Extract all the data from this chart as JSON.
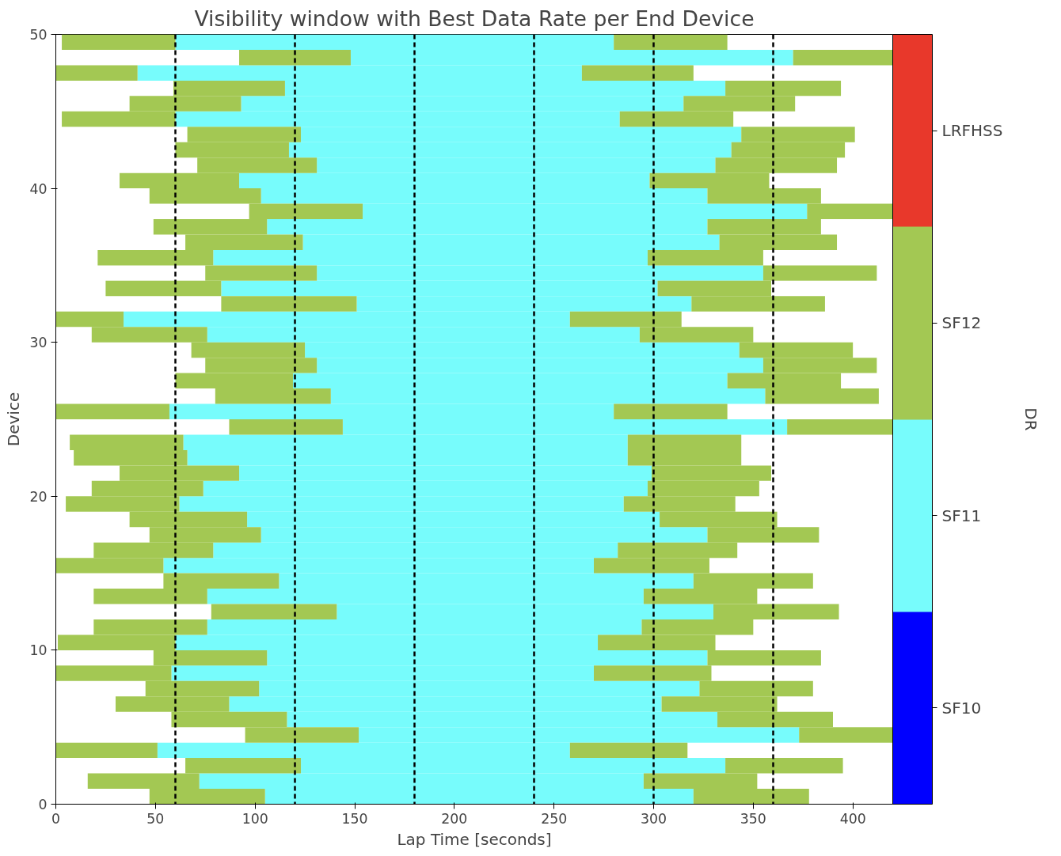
{
  "chart_data": {
    "type": "bar",
    "orientation": "horizontal",
    "title": "Visibility window with Best Data Rate per End Device",
    "xlabel": "Lap Time [seconds]",
    "ylabel": "Device",
    "clabel": "DR",
    "x": [
      0.5,
      1.5,
      2.5,
      3.5,
      4.5,
      5.5,
      6.5,
      7.5,
      8.5,
      9.5,
      10.5,
      11.5,
      12.5,
      13.5,
      14.5,
      15.5,
      16.5,
      17.5,
      18.5,
      19.5,
      20.5,
      21.5,
      22.5,
      23.5,
      24.5,
      25.5,
      26.5,
      27.5,
      28.5,
      29.5,
      30.5,
      31.5,
      32.5,
      33.5,
      34.5,
      35.5,
      36.5,
      37.5,
      38.5,
      39.5,
      40.5,
      41.5,
      42.5,
      43.5,
      44.5,
      45.5,
      46.5,
      47.5,
      48.5,
      49.5
    ],
    "xlim": [
      0,
      420
    ],
    "xticks": [
      0,
      50,
      100,
      150,
      200,
      250,
      300,
      350,
      400
    ],
    "ylim": [
      0,
      50
    ],
    "yticks": [
      0,
      10,
      20,
      30,
      40,
      50
    ],
    "grid": false,
    "series": [
      {
        "color": "#77fcfc",
        "base": [
          105,
          72,
          123,
          51,
          152,
          116,
          87,
          102,
          58,
          106,
          60,
          76,
          141,
          76,
          112,
          54,
          79,
          103,
          96,
          62,
          74,
          92,
          66,
          64,
          144,
          57,
          138,
          119,
          131,
          125,
          76,
          34,
          151,
          83,
          131,
          79,
          124,
          106,
          154,
          103,
          92,
          131,
          117,
          123,
          60,
          93,
          115,
          41,
          148,
          60
        ],
        "values": [
          215,
          223,
          213,
          207,
          221,
          216,
          217,
          221,
          212,
          221,
          212,
          218,
          189,
          219,
          208,
          216,
          203,
          224,
          207,
          223,
          223,
          207,
          221,
          223,
          223,
          223,
          218,
          218,
          224,
          218,
          217,
          224,
          168,
          219,
          224,
          218,
          209,
          221,
          223,
          224,
          206,
          200,
          222,
          221,
          223,
          222,
          221,
          223,
          222,
          220
        ]
      },
      {
        "color": "#a3c853",
        "base": [
          47,
          16,
          65,
          0,
          95,
          58,
          30,
          45,
          0,
          49,
          1,
          19,
          78,
          19,
          54,
          0,
          19,
          47,
          37,
          5,
          18,
          32,
          9,
          7,
          87,
          0,
          80,
          60,
          75,
          68,
          18,
          0,
          83,
          25,
          75,
          21,
          65,
          49,
          97,
          47,
          32,
          71,
          60,
          66,
          3,
          37,
          59,
          0,
          92,
          3
        ],
        "values": [
          58,
          56,
          58,
          51,
          57,
          58,
          57,
          57,
          58,
          57,
          59,
          57,
          63,
          57,
          58,
          54,
          60,
          56,
          59,
          57,
          56,
          60,
          57,
          57,
          57,
          57,
          58,
          59,
          56,
          57,
          58,
          34,
          68,
          58,
          56,
          58,
          59,
          57,
          57,
          56,
          60,
          60,
          57,
          57,
          57,
          56,
          56,
          41,
          56,
          57
        ]
      },
      {
        "color": "#a3c853",
        "base": [
          320,
          295,
          336,
          258,
          373,
          332,
          304,
          323,
          270,
          327,
          272,
          294,
          330,
          295,
          320,
          270,
          282,
          327,
          303,
          285,
          297,
          299,
          287,
          287,
          367,
          280,
          356,
          337,
          355,
          343,
          293,
          258,
          319,
          302,
          355,
          297,
          333,
          327,
          377,
          327,
          298,
          331,
          339,
          344,
          283,
          315,
          336,
          264,
          370,
          280
        ],
        "values": [
          58,
          57,
          59,
          59,
          47,
          58,
          58,
          57,
          59,
          57,
          59,
          56,
          63,
          57,
          60,
          58,
          60,
          56,
          59,
          56,
          56,
          60,
          57,
          57,
          53,
          57,
          57,
          57,
          57,
          57,
          57,
          56,
          67,
          57,
          57,
          58,
          59,
          57,
          43,
          57,
          60,
          61,
          57,
          57,
          57,
          56,
          58,
          56,
          50,
          57
        ]
      }
    ],
    "clim": [
      0,
      4
    ],
    "cticks": [
      {
        "value": 0.5,
        "label": "SF10"
      },
      {
        "value": 1.5,
        "label": "SF11"
      },
      {
        "value": 2.5,
        "label": "SF12"
      },
      {
        "value": 3.5,
        "label": "LRFHSS"
      }
    ],
    "colors": [
      "#0000ff",
      "#77fcfc",
      "#a3c853",
      "#e8382b"
    ],
    "ref_lines": [
      {
        "axis": "x",
        "value": 60,
        "color": "#000000",
        "line_style": "dashed"
      },
      {
        "axis": "x",
        "value": 120,
        "color": "#000000",
        "line_style": "dashed"
      },
      {
        "axis": "x",
        "value": 180,
        "color": "#000000",
        "line_style": "dashed"
      },
      {
        "axis": "x",
        "value": 240,
        "color": "#000000",
        "line_style": "dashed"
      },
      {
        "axis": "x",
        "value": 300,
        "color": "#000000",
        "line_style": "dashed"
      },
      {
        "axis": "x",
        "value": 360,
        "color": "#000000",
        "line_style": "dashed"
      }
    ]
  }
}
